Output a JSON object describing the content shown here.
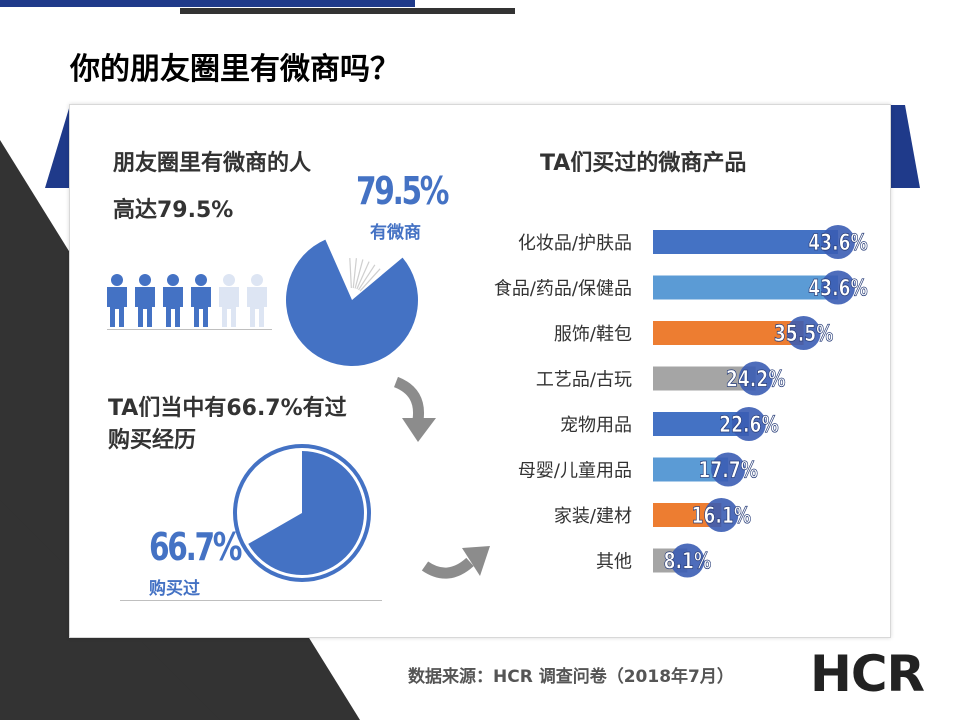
{
  "title": "你的朋友圈里有微商吗？",
  "colors": {
    "navy": "#1f3a8a",
    "blue": "#4472c4",
    "lightblue": "#5b9bd5",
    "orange": "#ed7d31",
    "gray": "#a5a5a5",
    "dark": "#333333"
  },
  "left": {
    "heading1": "朋友圈里有微商的人",
    "heading2": "高达79.5%",
    "pct1": "79.5%",
    "pct1_label": "有微商",
    "heading3_line1": "TA们当中有66.7%有过",
    "heading3_line2": "购买经历",
    "pct2": "66.7%",
    "pct2_label": "购买过",
    "people_icons": [
      "person-icon",
      "person-icon",
      "person-icon",
      "person-icon",
      "person-icon-light",
      "person-icon-light"
    ]
  },
  "chart_data": [
    {
      "type": "pie",
      "title": "",
      "values": [
        79.5,
        20.5
      ],
      "categories": [
        "有微商",
        ""
      ],
      "colors": [
        "#4472c4",
        "#ffffff"
      ]
    },
    {
      "type": "pie",
      "title": "",
      "values": [
        66.7,
        33.3
      ],
      "categories": [
        "购买过",
        ""
      ],
      "colors": [
        "#4472c4",
        "#ffffff"
      ]
    },
    {
      "type": "bar",
      "orientation": "horizontal",
      "title": "TA们买过的微商产品",
      "categories": [
        "化妆品/护肤品",
        "食品/药品/保健品",
        "服饰/鞋包",
        "工艺品/古玩",
        "宠物用品",
        "母婴/儿童用品",
        "家装/建材",
        "其他"
      ],
      "values": [
        43.6,
        43.6,
        35.5,
        24.2,
        22.6,
        17.7,
        16.1,
        8.1
      ],
      "labels": [
        "43.6%",
        "43.6%",
        "35.5%",
        "24.2%",
        "22.6%",
        "17.7%",
        "16.1%",
        "8.1%"
      ],
      "bar_colors": [
        "#4472c4",
        "#5b9bd5",
        "#ed7d31",
        "#a5a5a5",
        "#4472c4",
        "#5b9bd5",
        "#ed7d31",
        "#a5a5a5"
      ],
      "xlim": [
        0,
        43.6
      ],
      "grid": false
    }
  ],
  "footer": {
    "source": "数据来源：HCR 调查问卷（2018年7月）",
    "logo": "HCR"
  }
}
